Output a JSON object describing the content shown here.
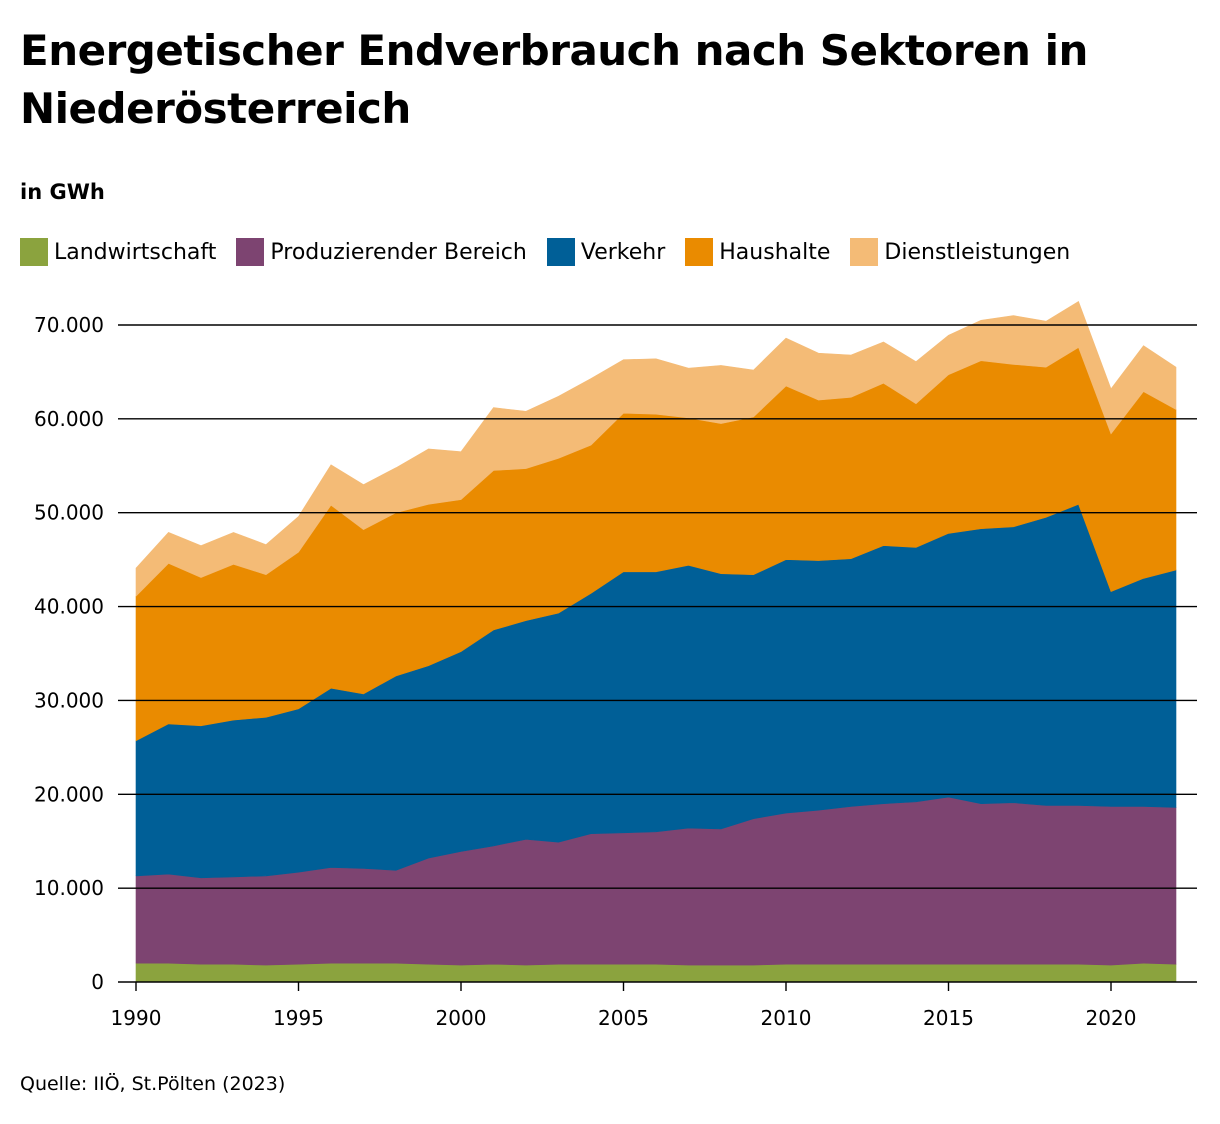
{
  "header": {
    "title": "Energetischer Endverbrauch nach Sektoren in Niederösterreich",
    "unit": "in GWh"
  },
  "footer": {
    "source": "Quelle: IIÖ, St.Pölten (2023)"
  },
  "chart_data": {
    "type": "area",
    "stacked": true,
    "title": "Energetischer Endverbrauch nach Sektoren in Niederösterreich",
    "ylabel": "in GWh",
    "xlabel": "",
    "xlim": [
      1990,
      2022
    ],
    "ylim": [
      0,
      70000
    ],
    "grid": true,
    "legend_position": "top",
    "x_ticks": [
      "1990",
      "1995",
      "2000",
      "2005",
      "2010",
      "2015",
      "2020"
    ],
    "y_ticks": [
      "0",
      "10.000",
      "20.000",
      "30.000",
      "40.000",
      "50.000",
      "60.000",
      "70.000"
    ],
    "x": [
      1990,
      1991,
      1992,
      1993,
      1994,
      1995,
      1996,
      1997,
      1998,
      1999,
      2000,
      2001,
      2002,
      2003,
      2004,
      2005,
      2006,
      2007,
      2008,
      2009,
      2010,
      2011,
      2012,
      2013,
      2014,
      2015,
      2016,
      2017,
      2018,
      2019,
      2020,
      2021,
      2022
    ],
    "series": [
      {
        "name": "Landwirtschaft",
        "color": "#8ba33e",
        "values": [
          2000,
          2000,
          1900,
          1900,
          1800,
          1900,
          2000,
          2000,
          2000,
          1900,
          1800,
          1900,
          1800,
          1900,
          1900,
          1900,
          1900,
          1800,
          1800,
          1800,
          1900,
          1900,
          1900,
          1900,
          1900,
          1900,
          1900,
          1900,
          1900,
          1900,
          1800,
          2000,
          1900
        ]
      },
      {
        "name": "Produzierender Bereich",
        "color": "#7d4471",
        "values": [
          9300,
          9500,
          9200,
          9300,
          9500,
          9800,
          10200,
          10100,
          9900,
          11300,
          12100,
          12600,
          13400,
          13000,
          13900,
          14000,
          14100,
          14600,
          14500,
          15600,
          16100,
          16400,
          16800,
          17100,
          17300,
          17800,
          17100,
          17200,
          16900,
          16900,
          16900,
          16700,
          16700
        ]
      },
      {
        "name": "Verkehr",
        "color": "#005f97",
        "values": [
          14400,
          16000,
          16200,
          16700,
          16900,
          17400,
          19100,
          18600,
          20700,
          20500,
          21300,
          23000,
          23300,
          24400,
          25600,
          27800,
          27700,
          28000,
          27200,
          26000,
          27000,
          26600,
          26400,
          27500,
          27100,
          28100,
          29300,
          29400,
          30700,
          32100,
          22900,
          24300,
          25300
        ]
      },
      {
        "name": "Haushalte",
        "color": "#ea8b00",
        "values": [
          15400,
          17100,
          15800,
          16600,
          15200,
          16700,
          19500,
          17500,
          17400,
          17200,
          16200,
          17000,
          16200,
          16500,
          15800,
          16900,
          16800,
          15700,
          16000,
          16800,
          18500,
          17100,
          17200,
          17300,
          15300,
          16900,
          17900,
          17300,
          16000,
          16700,
          16800,
          19900,
          17100
        ]
      },
      {
        "name": "Dienstleistungen",
        "color": "#f4bb76",
        "values": [
          3000,
          3300,
          3400,
          3400,
          3200,
          3800,
          4300,
          4800,
          4800,
          5900,
          5100,
          6700,
          6100,
          6600,
          7100,
          5700,
          5900,
          5300,
          6200,
          5000,
          5100,
          5000,
          4500,
          4400,
          4500,
          4200,
          4300,
          5200,
          4900,
          4900,
          4800,
          4900,
          4500
        ]
      }
    ]
  }
}
